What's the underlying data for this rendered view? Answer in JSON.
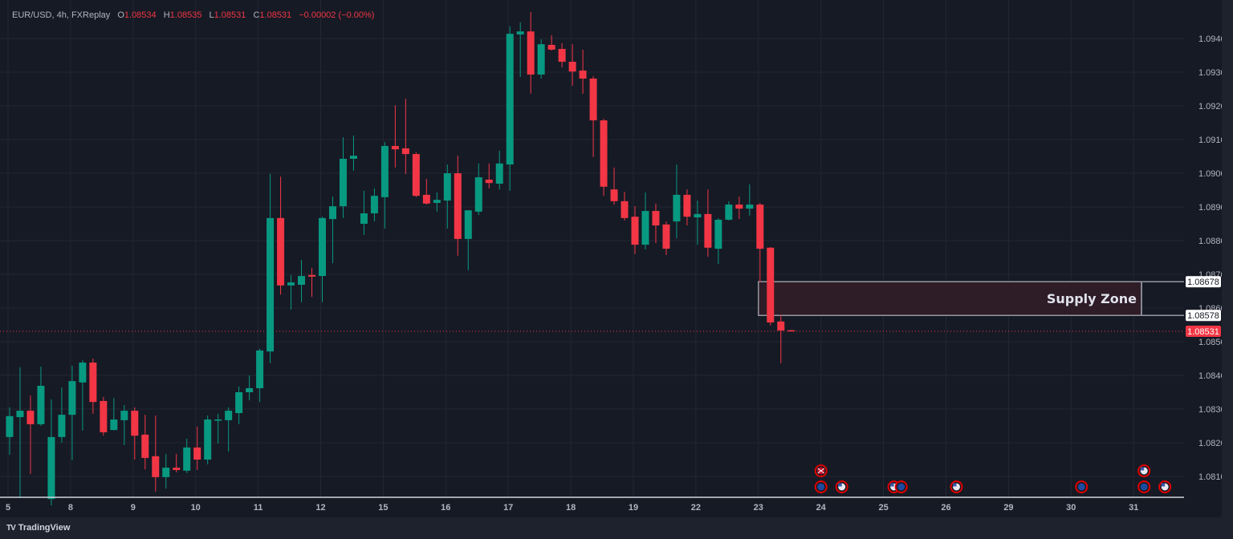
{
  "legend": {
    "symbol": "EUR/USD, 4h, FXReplay",
    "o_label": "O",
    "o": "1.08534",
    "h_label": "H",
    "h": "1.08535",
    "l_label": "L",
    "l": "1.08531",
    "c_label": "C",
    "c": "1.08531",
    "change": "−0.00002 (−0.00%)"
  },
  "footer": {
    "brand": "TradingView",
    "logo_mark": "TV"
  },
  "colors": {
    "up": "#089981",
    "down": "#f23645",
    "background": "#161a25",
    "grid": "#232733",
    "axis_text": "#b2b5be",
    "zone_fill": "#2e1c26",
    "zone_border": "#9598a1"
  },
  "chart_data": {
    "type": "candlestick",
    "symbol": "EUR/USD",
    "interval": "4h",
    "ylim": [
      1.0805,
      1.0948
    ],
    "grid": true,
    "y_ticks": [
      "1.09400",
      "1.09300",
      "1.09200",
      "1.09100",
      "1.09000",
      "1.08900",
      "1.08800",
      "1.08700",
      "1.08600",
      "1.08500",
      "1.08400",
      "1.08300",
      "1.08200",
      "1.08100"
    ],
    "x_ticks": [
      "5",
      "8",
      "9",
      "10",
      "11",
      "12",
      "15",
      "16",
      "17",
      "18",
      "19",
      "22",
      "23",
      "24",
      "25",
      "26",
      "29",
      "30",
      "31"
    ],
    "candles_per_day": 6,
    "candle_fields": [
      "open",
      "high",
      "low",
      "close"
    ],
    "candles": [
      [
        1.08217,
        1.08305,
        1.08164,
        1.08279
      ],
      [
        1.08276,
        1.08424,
        1.08038,
        1.08295
      ],
      [
        1.08295,
        1.0834,
        1.08107,
        1.08255
      ],
      [
        1.08255,
        1.08426,
        1.0825,
        1.08369
      ],
      [
        1.08033,
        1.08329,
        1.08014,
        1.08217
      ],
      [
        1.08217,
        1.08364,
        1.082,
        1.08283
      ],
      [
        1.08283,
        1.08429,
        1.08148,
        1.08383
      ],
      [
        1.08379,
        1.08445,
        1.08236,
        1.08438
      ],
      [
        1.08438,
        1.0845,
        1.08286,
        1.08321
      ],
      [
        1.08324,
        1.08336,
        1.08221,
        1.08231
      ],
      [
        1.08238,
        1.08333,
        1.08236,
        1.08269
      ],
      [
        1.08267,
        1.08312,
        1.08193,
        1.08295
      ],
      [
        1.08295,
        1.08305,
        1.0815,
        1.08221
      ],
      [
        1.08224,
        1.08283,
        1.08121,
        1.08155
      ],
      [
        1.0816,
        1.08281,
        1.08055,
        1.08098
      ],
      [
        1.08098,
        1.08167,
        1.08064,
        1.08126
      ],
      [
        1.08126,
        1.08167,
        1.08112,
        1.08119
      ],
      [
        1.08117,
        1.08212,
        1.0811,
        1.08186
      ],
      [
        1.08186,
        1.08248,
        1.08119,
        1.0815
      ],
      [
        1.0815,
        1.08281,
        1.08136,
        1.08269
      ],
      [
        1.08267,
        1.08286,
        1.08198,
        1.08269
      ],
      [
        1.08267,
        1.08305,
        1.08174,
        1.08295
      ],
      [
        1.08288,
        1.08367,
        1.08255,
        1.0835
      ],
      [
        1.0835,
        1.084,
        1.08326,
        1.08362
      ],
      [
        1.08362,
        1.08479,
        1.08321,
        1.08474
      ],
      [
        1.08471,
        1.08998,
        1.08436,
        1.08867
      ],
      [
        1.08867,
        1.0899,
        1.0864,
        1.08667
      ],
      [
        1.08667,
        1.08698,
        1.08595,
        1.08676
      ],
      [
        1.08669,
        1.08743,
        1.08617,
        1.08695
      ],
      [
        1.08698,
        1.08719,
        1.08633,
        1.08693
      ],
      [
        1.08695,
        1.08871,
        1.08617,
        1.08867
      ],
      [
        1.08864,
        1.08931,
        1.08733,
        1.08902
      ],
      [
        1.08902,
        1.09107,
        1.08867,
        1.09043
      ],
      [
        1.09043,
        1.09112,
        1.09007,
        1.09052
      ],
      [
        1.0885,
        1.08948,
        1.08817,
        1.08881
      ],
      [
        1.08881,
        1.08955,
        1.08857,
        1.08933
      ],
      [
        1.08929,
        1.09093,
        1.08836,
        1.09081
      ],
      [
        1.09081,
        1.09202,
        1.09017,
        1.09071
      ],
      [
        1.09074,
        1.09221,
        1.08998,
        1.09057
      ],
      [
        1.09057,
        1.09062,
        1.08929,
        1.08933
      ],
      [
        1.08936,
        1.08983,
        1.08907,
        1.0891
      ],
      [
        1.08912,
        1.08943,
        1.08886,
        1.08921
      ],
      [
        1.08919,
        1.09026,
        1.08836,
        1.09
      ],
      [
        1.09,
        1.09052,
        1.08755,
        1.08805
      ],
      [
        1.08805,
        1.0889,
        1.08712,
        1.0889
      ],
      [
        1.08886,
        1.09029,
        1.08876,
        1.08988
      ],
      [
        1.08981,
        1.09029,
        1.08955,
        1.08971
      ],
      [
        1.08969,
        1.09067,
        1.08952,
        1.09029
      ],
      [
        1.09026,
        1.09436,
        1.08948,
        1.09414
      ],
      [
        1.09412,
        1.09448,
        1.09286,
        1.09421
      ],
      [
        1.09421,
        1.09479,
        1.09236,
        1.09293
      ],
      [
        1.09293,
        1.09398,
        1.09281,
        1.09383
      ],
      [
        1.09381,
        1.0941,
        1.09364,
        1.09367
      ],
      [
        1.09369,
        1.09386,
        1.09314,
        1.09331
      ],
      [
        1.09331,
        1.09383,
        1.0926,
        1.09302
      ],
      [
        1.09305,
        1.09367,
        1.09236,
        1.09281
      ],
      [
        1.09281,
        1.09288,
        1.09048,
        1.09157
      ],
      [
        1.09157,
        1.09162,
        1.08933,
        1.0896
      ],
      [
        1.08952,
        1.09017,
        1.08907,
        1.08917
      ],
      [
        1.08917,
        1.08945,
        1.0886,
        1.08867
      ],
      [
        1.08871,
        1.08902,
        1.0876,
        1.08788
      ],
      [
        1.08788,
        1.08943,
        1.08774,
        1.08888
      ],
      [
        1.08888,
        1.0891,
        1.08793,
        1.08845
      ],
      [
        1.08848,
        1.08857,
        1.08757,
        1.08776
      ],
      [
        1.08857,
        1.09026,
        1.08807,
        1.08936
      ],
      [
        1.08936,
        1.08952,
        1.08845,
        1.08871
      ],
      [
        1.08869,
        1.08919,
        1.08788,
        1.08879
      ],
      [
        1.08879,
        1.08952,
        1.08752,
        1.08779
      ],
      [
        1.08776,
        1.08867,
        1.08731,
        1.08862
      ],
      [
        1.08862,
        1.08917,
        1.0886,
        1.08907
      ],
      [
        1.08907,
        1.08931,
        1.08864,
        1.08895
      ],
      [
        1.08895,
        1.08967,
        1.08874,
        1.08907
      ],
      [
        1.08907,
        1.08912,
        1.08676,
        1.08776
      ],
      [
        1.08779,
        1.08781,
        1.08548,
        1.08557
      ],
      [
        1.0856,
        1.08579,
        1.08436,
        1.08533
      ],
      [
        1.08534,
        1.08535,
        1.08531,
        1.08531
      ]
    ],
    "zone": {
      "label": "Supply Zone",
      "top": 1.08678,
      "bottom": 1.08578,
      "top_label": "1.08678",
      "bottom_label": "1.08578",
      "start_day": "23"
    },
    "last_price": {
      "value": 1.08531,
      "label": "1.08531"
    },
    "events": [
      {
        "day": "24",
        "slot": 0,
        "row": 2,
        "flag": "uk-flag-icon"
      },
      {
        "day": "24",
        "slot": 0,
        "row": 1,
        "flag": "eu-flag-icon"
      },
      {
        "day": "24",
        "slot": 2,
        "row": 1,
        "flag": "us-flag-icon"
      },
      {
        "day": "25",
        "slot": 1,
        "row": 1,
        "flag": "us-flag-icon"
      },
      {
        "day": "25",
        "slot": 1.7,
        "row": 1,
        "flag": "eu-flag-icon"
      },
      {
        "day": "26",
        "slot": 1,
        "row": 1,
        "flag": "us-flag-icon"
      },
      {
        "day": "30",
        "slot": 1,
        "row": 1,
        "flag": "eu-flag-icon"
      },
      {
        "day": "31",
        "slot": 1,
        "row": 2,
        "flag": "us-flag-icon"
      },
      {
        "day": "31",
        "slot": 1,
        "row": 1,
        "flag": "eu-flag-icon"
      },
      {
        "day": "31",
        "slot": 3,
        "row": 1,
        "flag": "us-flag-icon"
      }
    ]
  }
}
